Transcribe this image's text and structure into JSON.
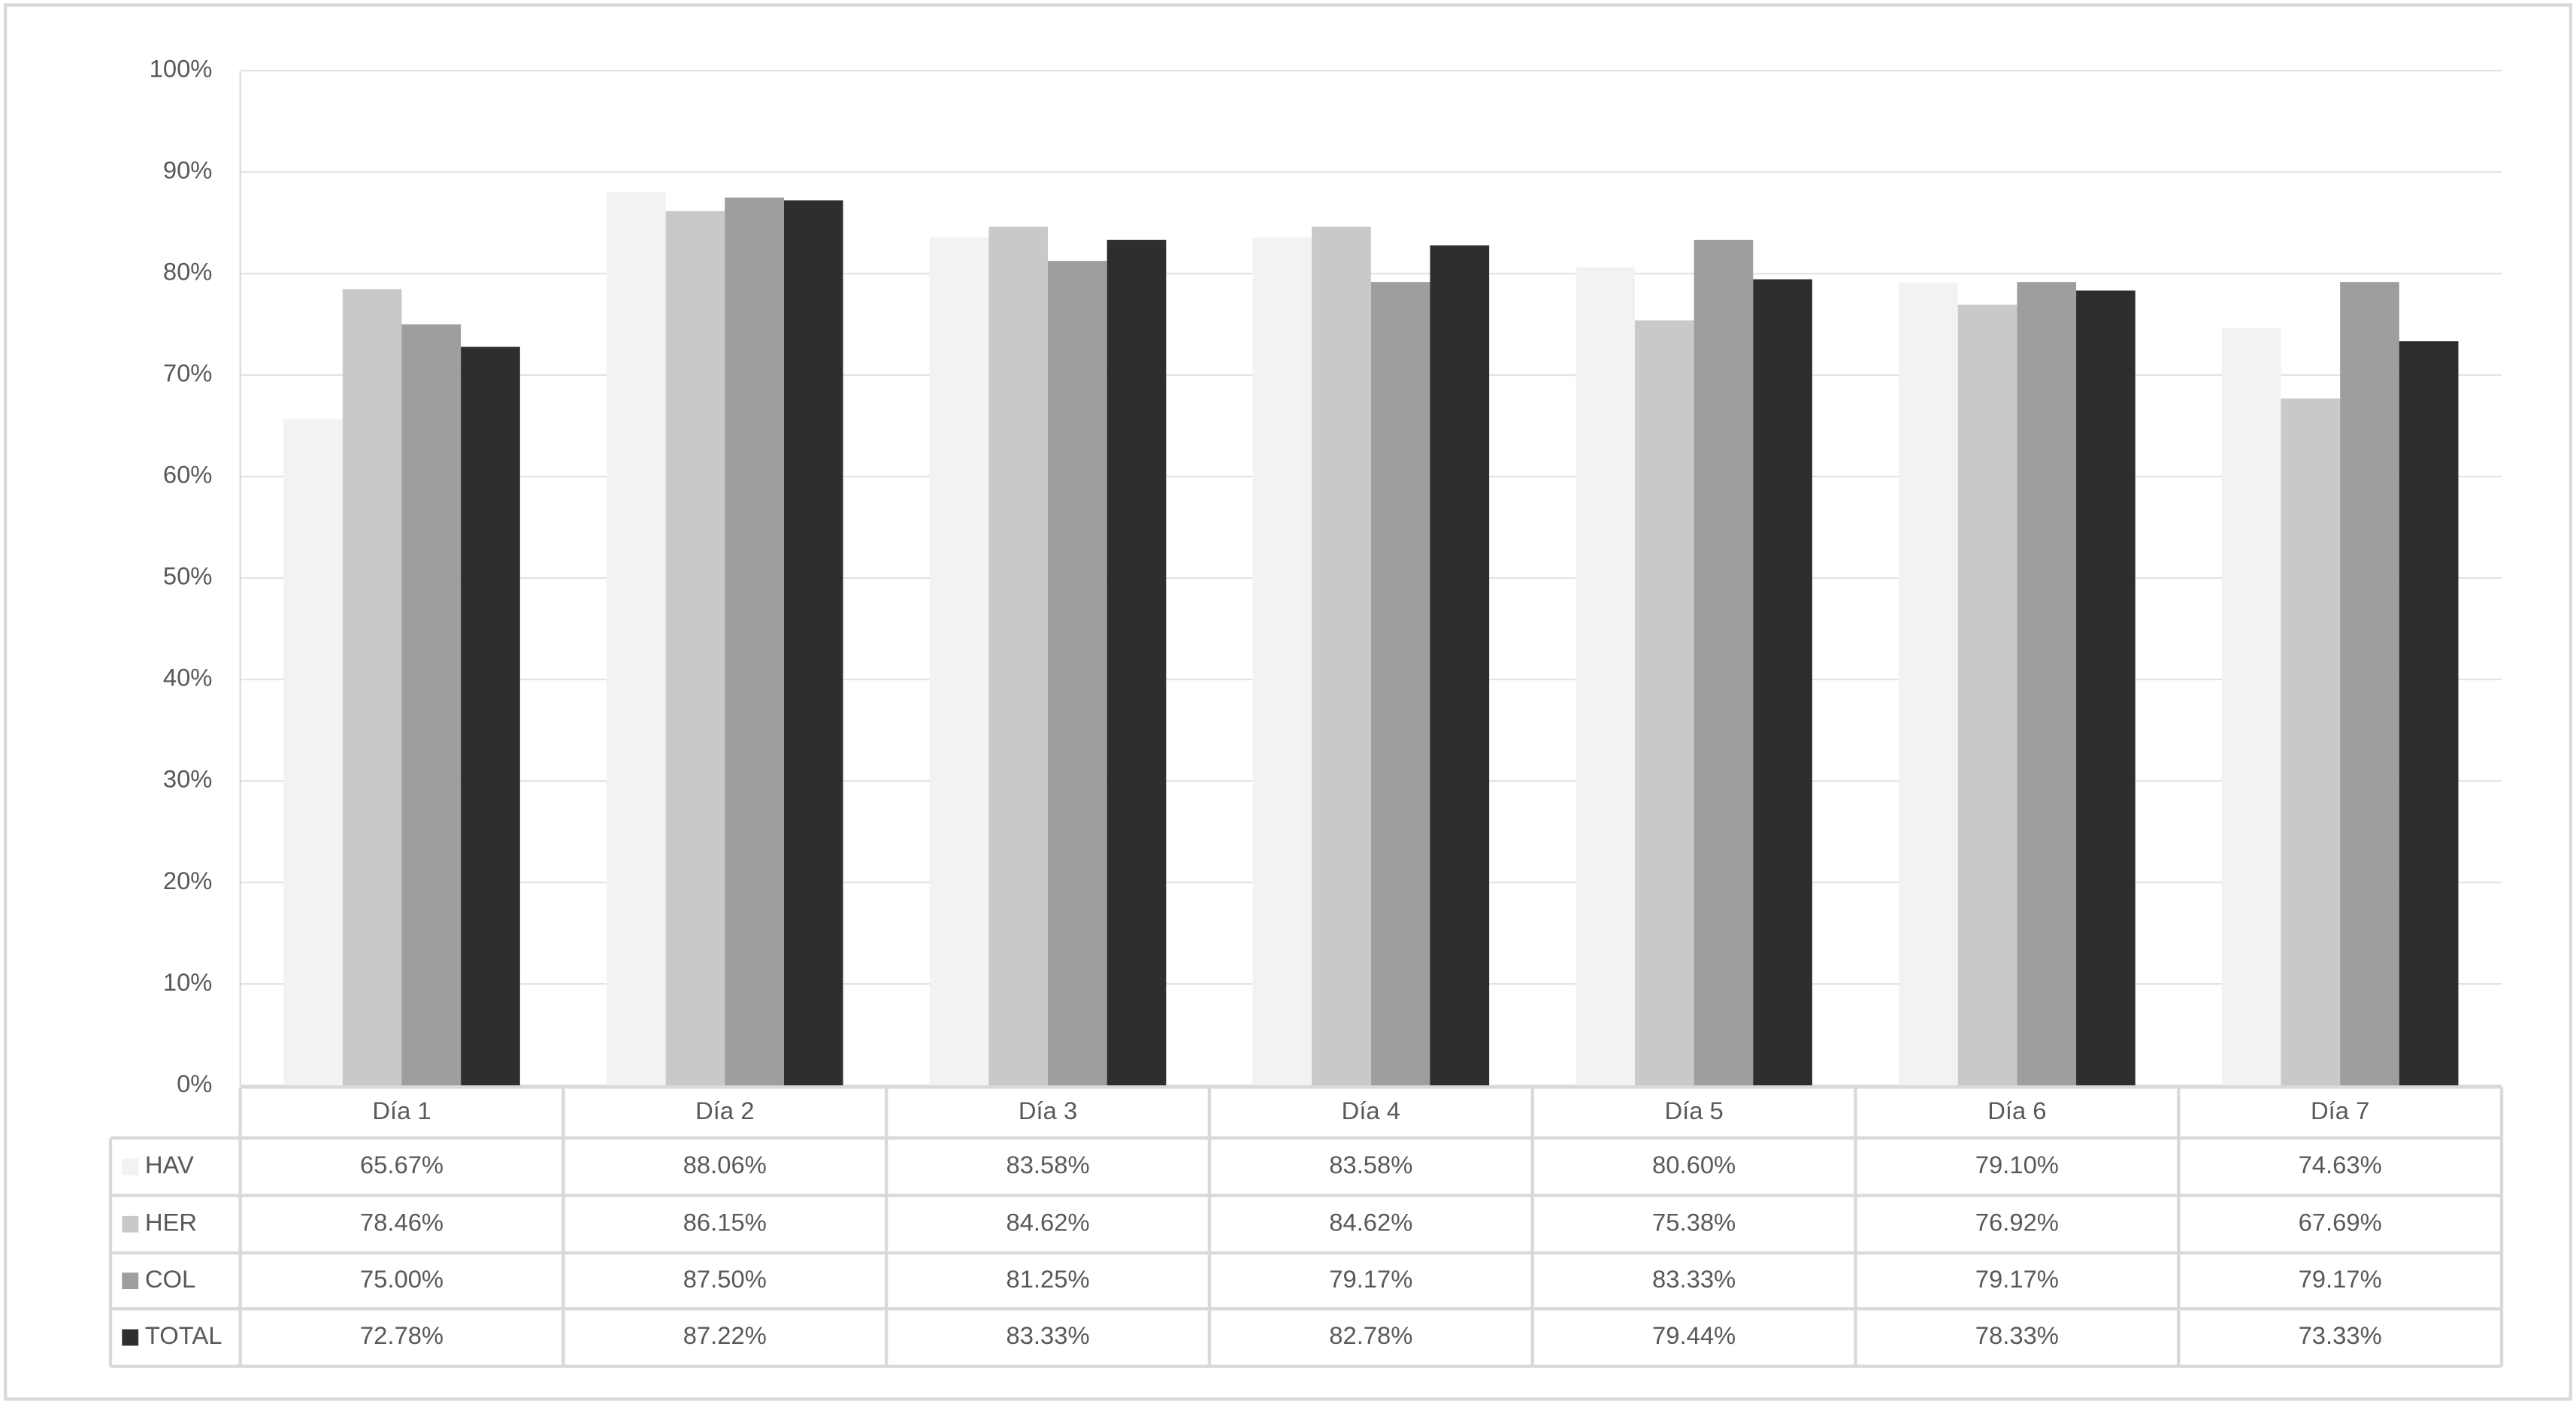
{
  "chart_data": {
    "type": "bar",
    "categories": [
      "Día 1",
      "Día 2",
      "Día 3",
      "Día 4",
      "Día 5",
      "Día 6",
      "Día 7"
    ],
    "series": [
      {
        "name": "HAV",
        "color": "#f2f2f2",
        "values": [
          65.67,
          88.06,
          83.58,
          83.58,
          80.6,
          79.1,
          74.63
        ],
        "value_labels": [
          "65.67%",
          "88.06%",
          "83.58%",
          "83.58%",
          "80.60%",
          "79.10%",
          "74.63%"
        ]
      },
      {
        "name": "HER",
        "color": "#c9c9c9",
        "values": [
          78.46,
          86.15,
          84.62,
          84.62,
          75.38,
          76.92,
          67.69
        ],
        "value_labels": [
          "78.46%",
          "86.15%",
          "84.62%",
          "84.62%",
          "75.38%",
          "76.92%",
          "67.69%"
        ]
      },
      {
        "name": "COL",
        "color": "#9e9e9e",
        "values": [
          75.0,
          87.5,
          81.25,
          79.17,
          83.33,
          79.17,
          79.17
        ],
        "value_labels": [
          "75.00%",
          "87.50%",
          "81.25%",
          "79.17%",
          "83.33%",
          "79.17%",
          "79.17%"
        ]
      },
      {
        "name": "TOTAL",
        "color": "#2e2e2e",
        "values": [
          72.78,
          87.22,
          83.33,
          82.78,
          79.44,
          78.33,
          73.33
        ],
        "value_labels": [
          "72.78%",
          "87.22%",
          "83.33%",
          "82.78%",
          "79.44%",
          "78.33%",
          "73.33%"
        ]
      }
    ],
    "ylim": [
      0,
      100
    ],
    "yticks": [
      {
        "value": 0,
        "label": "0%"
      },
      {
        "value": 10,
        "label": "10%"
      },
      {
        "value": 20,
        "label": "20%"
      },
      {
        "value": 30,
        "label": "30%"
      },
      {
        "value": 40,
        "label": "40%"
      },
      {
        "value": 50,
        "label": "50%"
      },
      {
        "value": 60,
        "label": "60%"
      },
      {
        "value": 70,
        "label": "70%"
      },
      {
        "value": 80,
        "label": "80%"
      },
      {
        "value": 90,
        "label": "90%"
      },
      {
        "value": 100,
        "label": "100%"
      }
    ],
    "grid": true
  }
}
